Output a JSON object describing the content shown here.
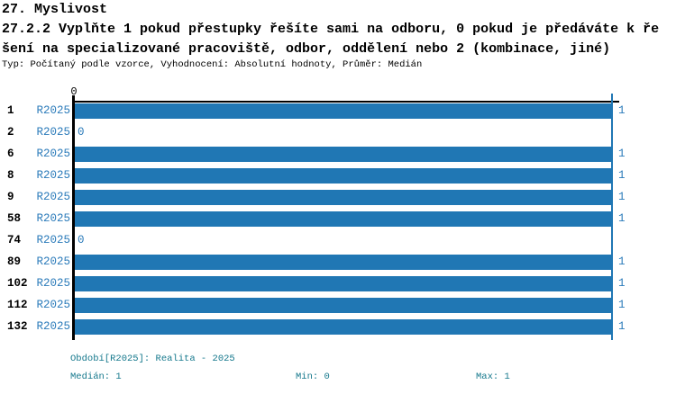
{
  "header": {
    "title": "27. Myslivost",
    "question_line1": "27.2.2 Vyplňte 1 pokud přestupky řešíte sami na odboru, 0 pokud je předáváte k ře",
    "question_line2": "šení na specializované pracoviště, odbor, oddělení nebo 2 (kombinace, jiné)",
    "meta": "Typ: Počítaný podle vzorce, Vyhodnocení: Absolutní hodnoty, Průměr: Medián"
  },
  "chart_data": {
    "type": "bar",
    "orientation": "horizontal",
    "title": "27.2.2 Vyplňte 1 pokud přestupky řešíte sami na odboru, 0 pokud je předáváte k řešení na specializované pracoviště, odbor, oddělení nebo 2 (kombinace, jiné)",
    "categories": [
      "1",
      "2",
      "6",
      "8",
      "9",
      "58",
      "74",
      "89",
      "102",
      "112",
      "132"
    ],
    "series": [
      {
        "name": "R2025",
        "values": [
          1,
          0,
          1,
          1,
          1,
          1,
          0,
          1,
          1,
          1,
          1
        ]
      }
    ],
    "xlim": [
      0,
      1
    ],
    "x_ticks": [
      0,
      1
    ],
    "visible_axis_tick_labels": [
      "0"
    ],
    "value_labels_shown": true,
    "grid": "single vertical gridline at max value",
    "legend_position": "none",
    "colors": {
      "bar": "#2077b4",
      "gridline": "#2077b4",
      "series_text": "#2b7bba",
      "axis": "#000000"
    }
  },
  "footer": {
    "period": "Období[R2025]: Realita - 2025",
    "median": "Medián: 1",
    "min": "Min: 0",
    "max": "Max: 1",
    "text_color": "#15788c"
  }
}
